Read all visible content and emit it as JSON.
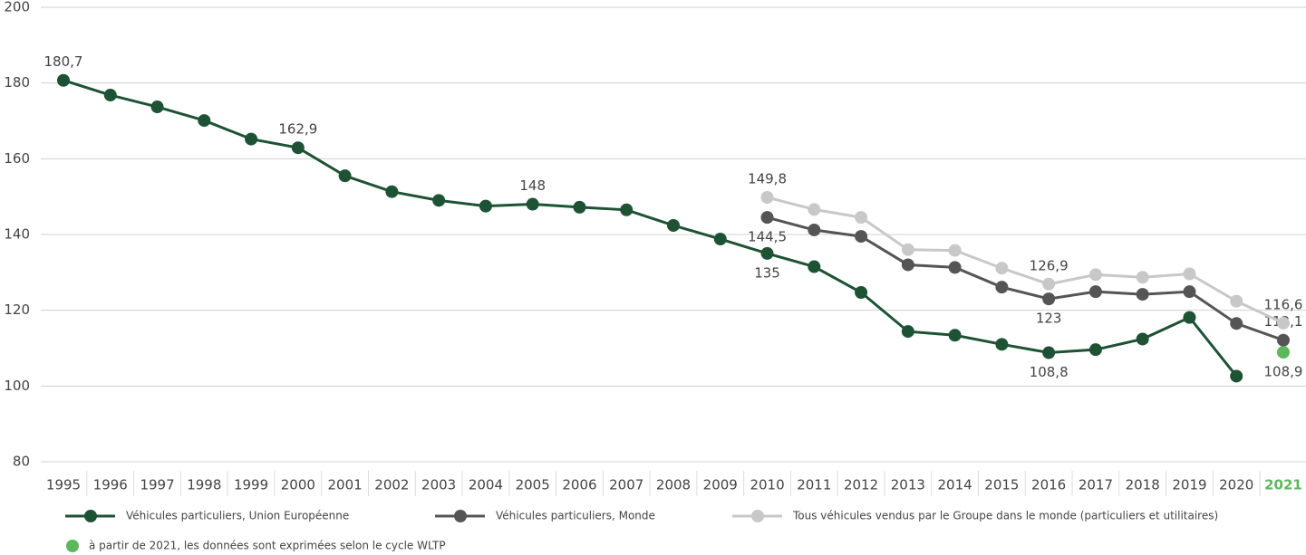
{
  "chart_data": {
    "type": "line",
    "categories": [
      "1995",
      "1996",
      "1997",
      "1998",
      "1999",
      "2000",
      "2001",
      "2002",
      "2003",
      "2004",
      "2005",
      "2006",
      "2007",
      "2008",
      "2009",
      "2010",
      "2011",
      "2012",
      "2013",
      "2014",
      "2015",
      "2016",
      "2017",
      "2018",
      "2019",
      "2020",
      "2021"
    ],
    "ylim": [
      80,
      200
    ],
    "yticks": [
      80,
      100,
      120,
      140,
      160,
      180,
      200
    ],
    "grid": true,
    "series": [
      {
        "name": "Véhicules particuliers, Union Européenne",
        "color": "#1e5235",
        "line": true,
        "values": [
          180.7,
          176.8,
          173.7,
          170.1,
          165.2,
          162.9,
          155.5,
          151.3,
          149,
          147.5,
          148,
          147.2,
          146.5,
          142.4,
          138.8,
          135,
          131.5,
          124.7,
          114.4,
          113.4,
          111,
          108.8,
          109.6,
          112.4,
          118.1,
          102.6,
          null
        ],
        "value_labels": [
          "180,7",
          null,
          null,
          null,
          null,
          "162,9",
          null,
          null,
          null,
          null,
          "148",
          null,
          null,
          null,
          null,
          "135",
          null,
          null,
          null,
          null,
          null,
          "108,8",
          null,
          null,
          null,
          null,
          null
        ]
      },
      {
        "name": "Véhicules particuliers, Monde",
        "color": "#555555",
        "line": true,
        "values": [
          null,
          null,
          null,
          null,
          null,
          null,
          null,
          null,
          null,
          null,
          null,
          null,
          null,
          null,
          null,
          144.5,
          141.2,
          139.5,
          132,
          131.3,
          126.1,
          123,
          124.9,
          124.2,
          124.9,
          116.5,
          112.1
        ],
        "value_labels": [
          null,
          null,
          null,
          null,
          null,
          null,
          null,
          null,
          null,
          null,
          null,
          null,
          null,
          null,
          null,
          "144,5",
          null,
          null,
          null,
          null,
          null,
          "123",
          null,
          null,
          null,
          null,
          "112,1"
        ]
      },
      {
        "name": "Tous véhicules vendus par le Groupe dans le monde (particuliers et utilitaires)",
        "color": "#c8c8c8",
        "line": true,
        "values": [
          null,
          null,
          null,
          null,
          null,
          null,
          null,
          null,
          null,
          null,
          null,
          null,
          null,
          null,
          null,
          149.8,
          146.6,
          144.5,
          136,
          135.8,
          131.1,
          126.9,
          129.4,
          128.7,
          129.6,
          122.4,
          116.6
        ],
        "value_labels": [
          null,
          null,
          null,
          null,
          null,
          null,
          null,
          null,
          null,
          null,
          null,
          null,
          null,
          null,
          null,
          "149,8",
          null,
          null,
          null,
          null,
          null,
          "126,9",
          null,
          null,
          null,
          null,
          "116,6"
        ]
      },
      {
        "name": "à partir de 2021, les données sont exprimées selon le cycle WLTP",
        "color": "#5cb85c",
        "line": false,
        "values": [
          null,
          null,
          null,
          null,
          null,
          null,
          null,
          null,
          null,
          null,
          null,
          null,
          null,
          null,
          null,
          null,
          null,
          null,
          null,
          null,
          null,
          null,
          null,
          null,
          null,
          null,
          108.9
        ],
        "value_labels": [
          null,
          null,
          null,
          null,
          null,
          null,
          null,
          null,
          null,
          null,
          null,
          null,
          null,
          null,
          null,
          null,
          null,
          null,
          null,
          null,
          null,
          null,
          null,
          null,
          null,
          null,
          "108,9"
        ]
      }
    ]
  }
}
